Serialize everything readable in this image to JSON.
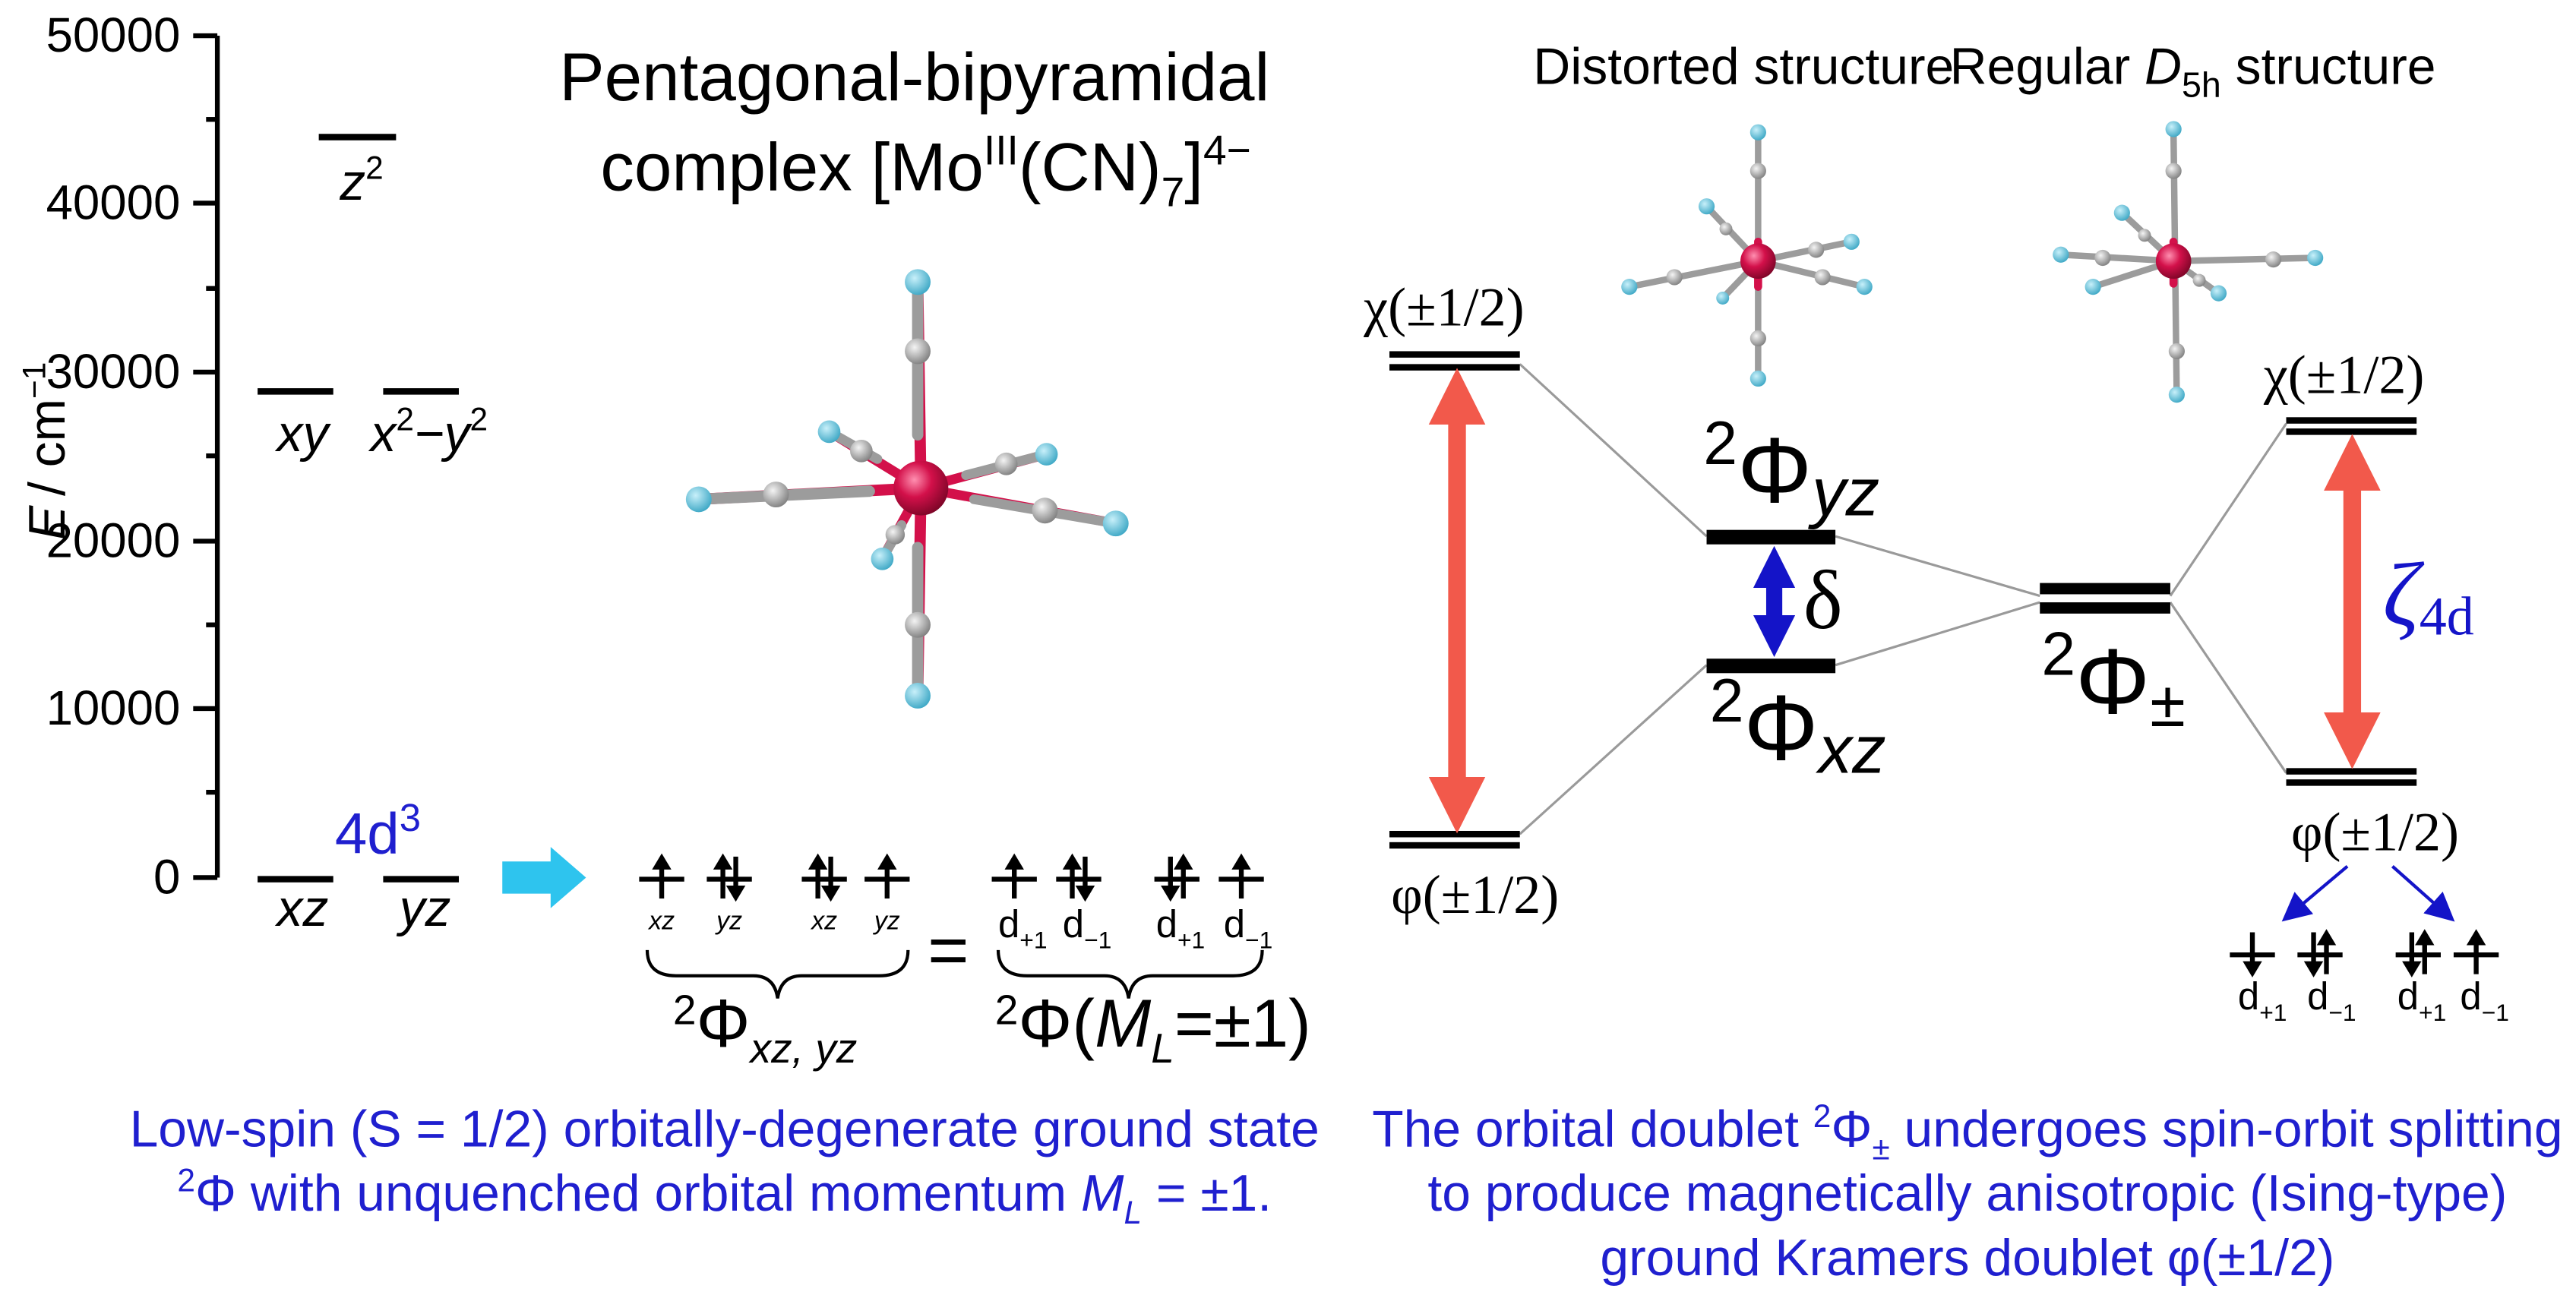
{
  "colors": {
    "arrow_red": "#f2594b",
    "arrow_blue": "#1414c8",
    "text_blue": "#1f1fcf",
    "connector": "#9a9a9a",
    "tick_arrow_cyan": "#2ec4ee",
    "cyanide_n": "#5bc0d8",
    "cyanide_c": "#9c9c9c",
    "mo_atom": "#d3104a"
  },
  "axis": {
    "ylabel": "E",
    "yunit": "/ cm",
    "yunit_sup": "−1",
    "ticks": [
      "0",
      "10000",
      "20000",
      "30000",
      "40000",
      "50000"
    ]
  },
  "left": {
    "title_line1": "Pentagonal-bipyramidal",
    "title_line2_a": "complex [Mo",
    "title_line2_sup": "III",
    "title_line2_b": "(CN)",
    "title_line2_sub": "7",
    "title_line2_c": "]",
    "title_line2_sup2": "4−",
    "orbital_z2": "z",
    "orbital_z2_sup": "2",
    "orbital_xy": "xy",
    "orbital_x2y2": "x",
    "orbital_x2y2_sup": "2",
    "orbital_x2y2_b": "−y",
    "orbital_x2y2_sup2": "2",
    "orbital_xz": "xz",
    "orbital_yz": "yz",
    "config": "4d",
    "config_sup": "3",
    "small_labels": [
      "xz",
      "yz",
      "xz",
      "yz"
    ],
    "d_labels": [
      "d",
      "d",
      "d",
      "d"
    ],
    "d_subs": [
      "+1",
      "−1",
      "+1",
      "−1"
    ],
    "equals": "=",
    "phi_xzyz": "Φ",
    "phi_xzyz_sup": "2",
    "phi_xzyz_sub": "xz, yz",
    "phi_ml": "Φ(",
    "phi_ml_sup": "2",
    "phi_ml_italic": "M",
    "phi_ml_sub": "L",
    "phi_ml_end": "=±1)",
    "caption_line1": "Low-spin (S = 1/2) orbitally-degenerate ground state",
    "caption_line2_sup": "2",
    "caption_line2_a": "Φ with unquenched orbital momentum ",
    "caption_line2_italic": "M",
    "caption_line2_sub": "L",
    "caption_line2_b": " = ±1."
  },
  "right": {
    "distorted_label": "Distorted structure",
    "regular_label_a": "Regular ",
    "regular_label_italic": "D",
    "regular_label_sub": "5h",
    "regular_label_b": " structure",
    "chi_left": "χ(±1/2)",
    "phi_left": "φ(±1/2)",
    "phi_yz_sup": "2",
    "phi_yz": "Φ",
    "phi_yz_sub": "yz",
    "phi_xz_sup": "2",
    "phi_xz": "Φ",
    "phi_xz_sub": "xz",
    "delta": "δ",
    "phi_pm_sup": "2",
    "phi_pm": "Φ",
    "phi_pm_sub": "±",
    "chi_right": "χ(±1/2)",
    "phi_right": "φ(±1/2)",
    "zeta": "ζ",
    "zeta_sub": "4d",
    "d_labels": [
      "d",
      "d",
      "d",
      "d"
    ],
    "d_subs": [
      "+1",
      "−1",
      "+1",
      "−1"
    ],
    "caption_line1_a": "The orbital doublet ",
    "caption_line1_sup": "2",
    "caption_line1_b": "Φ",
    "caption_line1_sub": "±",
    "caption_line1_c": " undergoes spin-orbit splitting",
    "caption_line2": "to produce magnetically anisotropic (Ising-type)",
    "caption_line3": "ground Kramers doublet φ(±1/2)"
  }
}
